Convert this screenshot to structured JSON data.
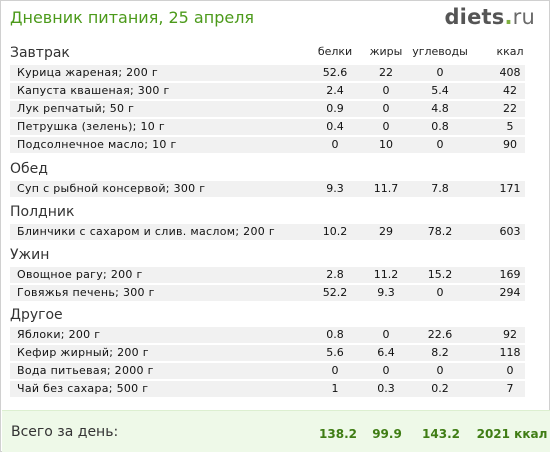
{
  "title": "Дневник питания, 25 апреля",
  "logo": {
    "name": "diets",
    "dot": ".",
    "tld": "ru"
  },
  "columns": [
    "белки",
    "жиры",
    "углеводы",
    "ккал"
  ],
  "sections": [
    {
      "name": "Завтрак",
      "items": [
        {
          "name": "Курица жареная; 200 г",
          "vals": [
            "52.6",
            "22",
            "0",
            "408"
          ]
        },
        {
          "name": "Капуста квашеная; 300 г",
          "vals": [
            "2.4",
            "0",
            "5.4",
            "42"
          ]
        },
        {
          "name": "Лук репчатый; 50 г",
          "vals": [
            "0.9",
            "0",
            "4.8",
            "22"
          ]
        },
        {
          "name": "Петрушка (зелень); 10 г",
          "vals": [
            "0.4",
            "0",
            "0.8",
            "5"
          ]
        },
        {
          "name": "Подсолнечное масло; 10 г",
          "vals": [
            "0",
            "10",
            "0",
            "90"
          ]
        }
      ]
    },
    {
      "name": "Обед",
      "items": [
        {
          "name": "Суп с рыбной консервой; 300 г",
          "vals": [
            "9.3",
            "11.7",
            "7.8",
            "171"
          ]
        }
      ]
    },
    {
      "name": "Полдник",
      "items": [
        {
          "name": "Блинчики с сахаром и слив. маслом; 200 г",
          "vals": [
            "10.2",
            "29",
            "78.2",
            "603"
          ]
        }
      ]
    },
    {
      "name": "Ужин",
      "items": [
        {
          "name": "Овощное рагу; 200 г",
          "vals": [
            "2.8",
            "11.2",
            "15.2",
            "169"
          ]
        },
        {
          "name": "Говяжья печень; 300 г",
          "vals": [
            "52.2",
            "9.3",
            "0",
            "294"
          ]
        }
      ]
    },
    {
      "name": "Другое",
      "items": [
        {
          "name": "Яблоки; 200 г",
          "vals": [
            "0.8",
            "0",
            "22.6",
            "92"
          ]
        },
        {
          "name": "Кефир жирный; 200 г",
          "vals": [
            "5.6",
            "6.4",
            "8.2",
            "118"
          ]
        },
        {
          "name": "Вода питьевая; 2000 г",
          "vals": [
            "0",
            "0",
            "0",
            "0"
          ]
        },
        {
          "name": "Чай без сахара; 500 г",
          "vals": [
            "1",
            "0.3",
            "0.2",
            "7"
          ]
        }
      ]
    }
  ],
  "total": {
    "label": "Всего за день:",
    "vals": [
      "138.2",
      "99.9",
      "143.2",
      "2021 ккал"
    ]
  }
}
